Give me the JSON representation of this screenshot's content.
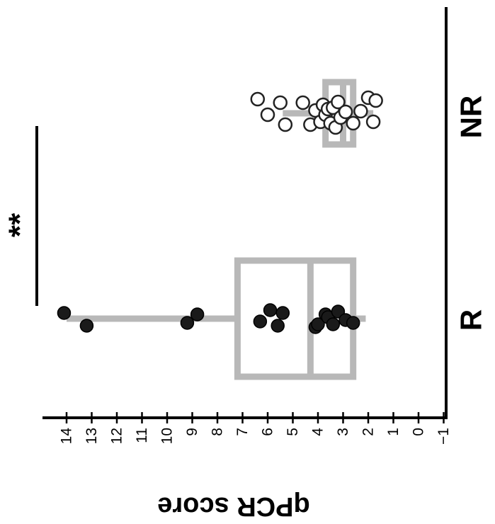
{
  "chart_data": {
    "type": "scatter",
    "orientation": "rotated-90",
    "ylabel": "qPCR score",
    "categories": [
      "R",
      "NR"
    ],
    "yticks": [
      14,
      13,
      12,
      11,
      10,
      9,
      8,
      7,
      6,
      5,
      4,
      3,
      2,
      1,
      0,
      -1
    ],
    "ytick_labels": [
      "14",
      "13",
      "12",
      "11",
      "10",
      "9",
      "8",
      "7",
      "6",
      "5",
      "4",
      "3",
      "2",
      "1",
      "0",
      "−1"
    ],
    "ylim": [
      -1.5,
      14.5
    ],
    "significance": "**",
    "series": [
      {
        "category": "R",
        "marker": "filled",
        "values": [
          14.1,
          13.2,
          9.2,
          8.8,
          6.3,
          5.9,
          5.6,
          5.4,
          4.1,
          4.0,
          3.7,
          3.6,
          3.4,
          3.2,
          2.9,
          2.6
        ],
        "box": {
          "q1": 2.6,
          "median": 4.3,
          "q3": 7.2,
          "whisker_low": 2.1,
          "whisker_high": 14.0
        }
      },
      {
        "category": "NR",
        "marker": "open",
        "values": [
          6.4,
          6.0,
          5.5,
          5.3,
          4.6,
          4.3,
          4.1,
          3.9,
          3.8,
          3.7,
          3.6,
          3.5,
          3.4,
          3.3,
          3.2,
          3.1,
          2.9,
          2.6,
          2.3,
          2.0,
          1.8,
          1.7
        ],
        "box": {
          "q1": 2.6,
          "median": 3.0,
          "q3": 3.7,
          "whisker_low": 1.8,
          "whisker_high": 5.4
        }
      }
    ]
  }
}
